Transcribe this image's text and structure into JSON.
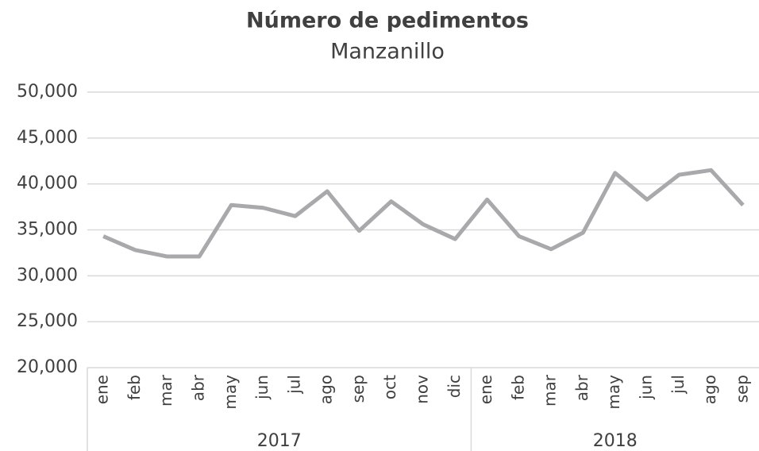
{
  "chart_data": {
    "type": "line",
    "title": "Número de pedimentos",
    "subtitle": "Manzanillo",
    "groups": [
      {
        "label": "2017",
        "categories": [
          "ene",
          "feb",
          "mar",
          "abr",
          "may",
          "jun",
          "jul",
          "ago",
          "sep",
          "oct",
          "nov",
          "dic"
        ]
      },
      {
        "label": "2018",
        "categories": [
          "ene",
          "feb",
          "mar",
          "abr",
          "may",
          "jun",
          "jul",
          "ago",
          "sep"
        ]
      }
    ],
    "series": [
      {
        "name": "Manzanillo",
        "color": "#a9a9ac",
        "values": [
          34300,
          32800,
          32100,
          32100,
          37700,
          37400,
          36500,
          39200,
          34900,
          38100,
          35600,
          34000,
          38300,
          34300,
          32900,
          34700,
          41200,
          38300,
          41000,
          41500,
          37700
        ]
      }
    ],
    "ylim": [
      20000,
      50000
    ],
    "yticks": [
      {
        "value": 20000,
        "label": "20,000"
      },
      {
        "value": 25000,
        "label": "25,000"
      },
      {
        "value": 30000,
        "label": "30,000"
      },
      {
        "value": 35000,
        "label": "35,000"
      },
      {
        "value": 40000,
        "label": "40,000"
      },
      {
        "value": 45000,
        "label": "45,000"
      },
      {
        "value": 50000,
        "label": "50,000"
      }
    ],
    "grid": true
  }
}
